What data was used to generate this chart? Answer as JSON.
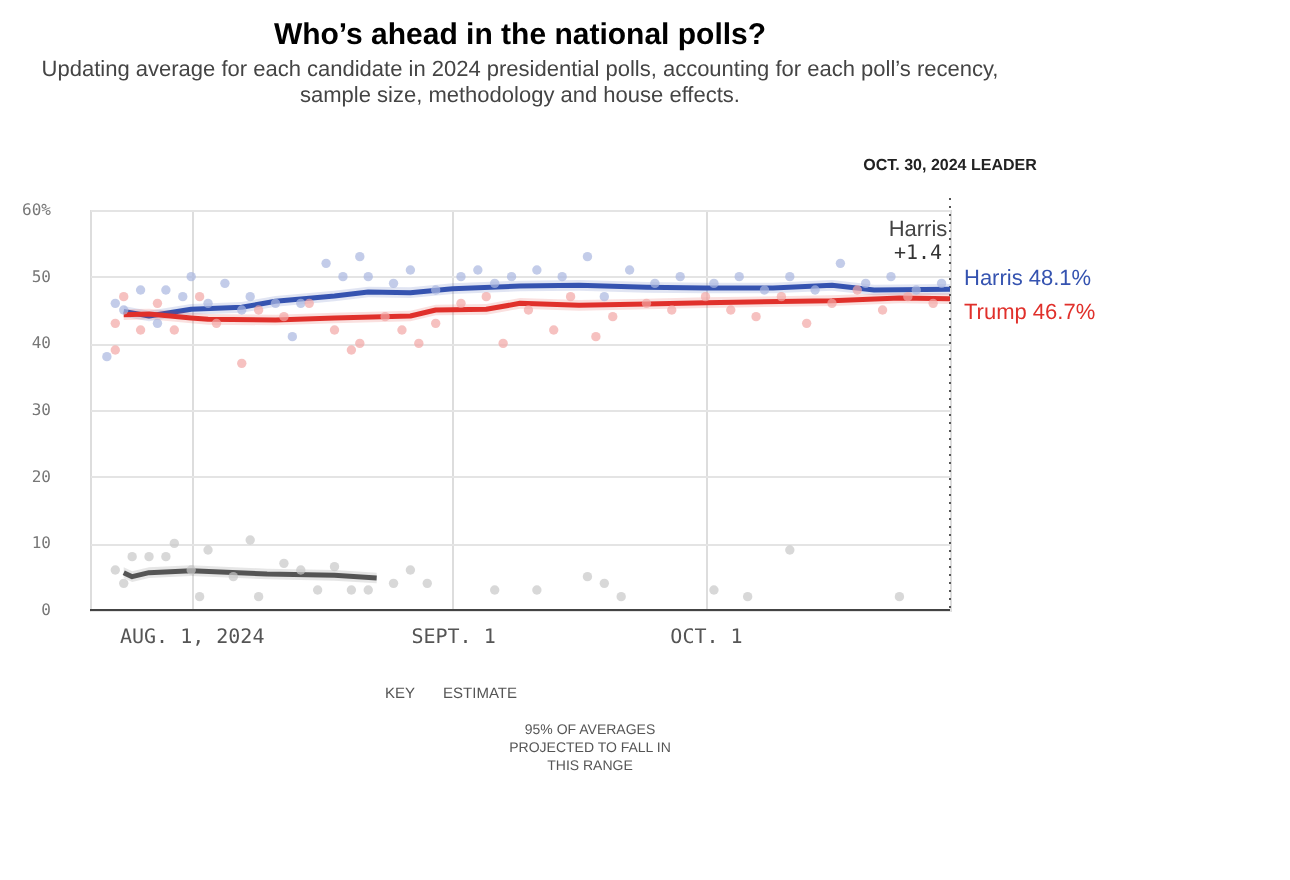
{
  "chart_data": {
    "type": "line",
    "title": "Who’s ahead in the national polls?",
    "subtitle": [
      "Updating average for each candidate in 2024 presidential polls, accounting for each poll’s recency,",
      "sample size, methodology and house effects."
    ],
    "xlim": [
      "2024-07-20",
      "2024-10-30"
    ],
    "xticks": [
      {
        "value": "2024-08-01",
        "label": "AUG. 1, 2024"
      },
      {
        "value": "2024-09-01",
        "label": "SEPT. 1"
      },
      {
        "value": "2024-10-01",
        "label": "OCT. 1"
      }
    ],
    "ylim": [
      0,
      60
    ],
    "yticks": [
      0,
      10,
      20,
      30,
      40,
      50,
      {
        "value": 60,
        "label": "60%"
      }
    ],
    "grid": true,
    "marker": "none",
    "line_style": "solid",
    "ref_lines": [
      {
        "axis": "x",
        "value": "2024-10-30",
        "label": "OCT. 30, 2024 LEADER",
        "line_style": "dotted",
        "color": "#555555"
      }
    ],
    "series": [
      {
        "type": "scatter",
        "color": "#a9b7e0",
        "marker": "circle",
        "x": [
          "2024-07-22",
          "2024-07-23",
          "2024-07-24",
          "2024-07-26",
          "2024-07-28",
          "2024-07-29",
          "2024-07-31",
          "2024-08-01",
          "2024-08-03",
          "2024-08-05",
          "2024-08-07",
          "2024-08-08",
          "2024-08-11",
          "2024-08-13",
          "2024-08-14",
          "2024-08-17",
          "2024-08-19",
          "2024-08-21",
          "2024-08-22",
          "2024-08-25",
          "2024-08-27",
          "2024-08-30",
          "2024-09-02",
          "2024-09-04",
          "2024-09-06",
          "2024-09-08",
          "2024-09-11",
          "2024-09-14",
          "2024-09-17",
          "2024-09-19",
          "2024-09-22",
          "2024-09-25",
          "2024-09-28",
          "2024-10-02",
          "2024-10-05",
          "2024-10-08",
          "2024-10-11",
          "2024-10-14",
          "2024-10-17",
          "2024-10-20",
          "2024-10-23",
          "2024-10-26",
          "2024-10-29"
        ],
        "values": [
          38,
          46,
          45,
          48,
          43,
          48,
          47,
          50,
          46,
          49,
          45,
          47,
          46,
          41,
          46,
          52,
          50,
          53,
          50,
          49,
          51,
          48,
          50,
          51,
          49,
          50,
          51,
          50,
          53,
          47,
          51,
          49,
          50,
          49,
          50,
          48,
          50,
          48,
          52,
          49,
          50,
          48,
          49
        ]
      },
      {
        "type": "scatter",
        "color": "#f2a7a5",
        "marker": "circle",
        "x": [
          "2024-07-23",
          "2024-07-23",
          "2024-07-24",
          "2024-07-26",
          "2024-07-28",
          "2024-07-30",
          "2024-08-02",
          "2024-08-04",
          "2024-08-07",
          "2024-08-09",
          "2024-08-12",
          "2024-08-15",
          "2024-08-18",
          "2024-08-20",
          "2024-08-21",
          "2024-08-24",
          "2024-08-26",
          "2024-08-28",
          "2024-08-30",
          "2024-09-02",
          "2024-09-05",
          "2024-09-07",
          "2024-09-10",
          "2024-09-13",
          "2024-09-15",
          "2024-09-18",
          "2024-09-20",
          "2024-09-24",
          "2024-09-27",
          "2024-10-01",
          "2024-10-04",
          "2024-10-07",
          "2024-10-10",
          "2024-10-13",
          "2024-10-16",
          "2024-10-19",
          "2024-10-22",
          "2024-10-25",
          "2024-10-28"
        ],
        "values": [
          39,
          43,
          47,
          42,
          46,
          42,
          47,
          43,
          37,
          45,
          44,
          46,
          42,
          39,
          40,
          44,
          42,
          40,
          43,
          46,
          47,
          40,
          45,
          42,
          47,
          41,
          44,
          46,
          45,
          47,
          45,
          44,
          47,
          43,
          46,
          48,
          45,
          47,
          46
        ]
      },
      {
        "type": "scatter",
        "color": "#c8c8c8",
        "marker": "circle",
        "x": [
          "2024-07-23",
          "2024-07-24",
          "2024-07-25",
          "2024-07-27",
          "2024-07-29",
          "2024-07-30",
          "2024-08-01",
          "2024-08-02",
          "2024-08-03",
          "2024-08-06",
          "2024-08-08",
          "2024-08-09",
          "2024-08-12",
          "2024-08-14",
          "2024-08-16",
          "2024-08-18",
          "2024-08-20",
          "2024-08-22",
          "2024-08-25",
          "2024-08-27",
          "2024-08-29",
          "2024-09-06",
          "2024-09-11",
          "2024-09-17",
          "2024-09-19",
          "2024-09-21",
          "2024-10-02",
          "2024-10-06",
          "2024-10-11",
          "2024-10-24"
        ],
        "values": [
          6,
          4,
          8,
          8,
          8,
          10,
          6,
          2,
          9,
          5,
          10.5,
          2,
          7,
          6,
          3,
          6.5,
          3,
          3,
          4,
          6,
          4,
          3,
          3,
          5,
          4,
          2,
          3,
          2,
          9,
          2
        ]
      },
      {
        "color": "#3553b0",
        "x": [
          "2024-07-24",
          "2024-07-27",
          "2024-08-01",
          "2024-08-07",
          "2024-08-11",
          "2024-08-18",
          "2024-08-22",
          "2024-08-27",
          "2024-09-01",
          "2024-09-09",
          "2024-09-16",
          "2024-09-24",
          "2024-10-01",
          "2024-10-09",
          "2024-10-16",
          "2024-10-21",
          "2024-10-30"
        ],
        "values": [
          44.8,
          44.1,
          45.1,
          45.4,
          46.3,
          47.1,
          47.7,
          47.6,
          48.2,
          48.6,
          48.7,
          48.4,
          48.3,
          48.3,
          48.7,
          48.0,
          48.1
        ],
        "lower": [
          44.0,
          43.3,
          44.3,
          44.6,
          45.5,
          46.3,
          46.9,
          46.8,
          47.4,
          47.8,
          47.9,
          47.6,
          47.5,
          47.5,
          47.9,
          47.2,
          47.3
        ],
        "upper": [
          45.6,
          44.9,
          45.9,
          46.2,
          47.1,
          47.9,
          48.5,
          48.4,
          49.0,
          49.4,
          49.5,
          49.2,
          49.1,
          49.1,
          49.5,
          48.8,
          48.9
        ]
      },
      {
        "color": "#e0302b",
        "x": [
          "2024-07-24",
          "2024-07-27",
          "2024-08-01",
          "2024-08-03",
          "2024-08-11",
          "2024-08-18",
          "2024-08-27",
          "2024-08-30",
          "2024-09-05",
          "2024-09-09",
          "2024-09-16",
          "2024-09-24",
          "2024-10-01",
          "2024-10-16",
          "2024-10-24",
          "2024-10-30"
        ],
        "values": [
          44.3,
          44.4,
          43.8,
          43.6,
          43.5,
          43.8,
          44.1,
          45.0,
          45.1,
          46.0,
          45.7,
          45.9,
          46.1,
          46.4,
          46.8,
          46.7
        ],
        "lower": [
          43.5,
          43.6,
          43.0,
          42.8,
          42.7,
          43.0,
          43.3,
          44.2,
          44.3,
          45.2,
          44.9,
          45.1,
          45.3,
          45.6,
          46.0,
          45.9
        ],
        "upper": [
          45.1,
          45.2,
          44.6,
          44.4,
          44.3,
          44.6,
          44.9,
          45.8,
          45.9,
          46.8,
          46.5,
          46.7,
          46.9,
          47.2,
          47.6,
          47.5
        ]
      },
      {
        "color": "#555555",
        "x": [
          "2024-07-24",
          "2024-07-25",
          "2024-07-27",
          "2024-08-01",
          "2024-08-10",
          "2024-08-18",
          "2024-08-23"
        ],
        "values": [
          5.6,
          5.0,
          5.6,
          5.9,
          5.4,
          5.2,
          4.8
        ],
        "lower": [
          4.8,
          4.2,
          4.8,
          5.1,
          4.6,
          4.4,
          4.0
        ],
        "upper": [
          6.4,
          5.8,
          6.4,
          6.7,
          6.2,
          6.0,
          5.6
        ]
      }
    ],
    "annotations": [
      {
        "text": "Harris",
        "x": "2024-10-30",
        "y": 57
      },
      {
        "text": "+1.4",
        "x": "2024-10-30",
        "y": 53.5
      },
      {
        "text": "Harris 48.1%",
        "x": "2024-10-30",
        "y": 48.1
      },
      {
        "text": "Trump 46.7%",
        "x": "2024-10-30",
        "y": 46.7
      },
      "KEY",
      "ESTIMATE",
      "95% OF AVERAGES",
      "PROJECTED TO FALL IN",
      "THIS RANGE"
    ]
  }
}
